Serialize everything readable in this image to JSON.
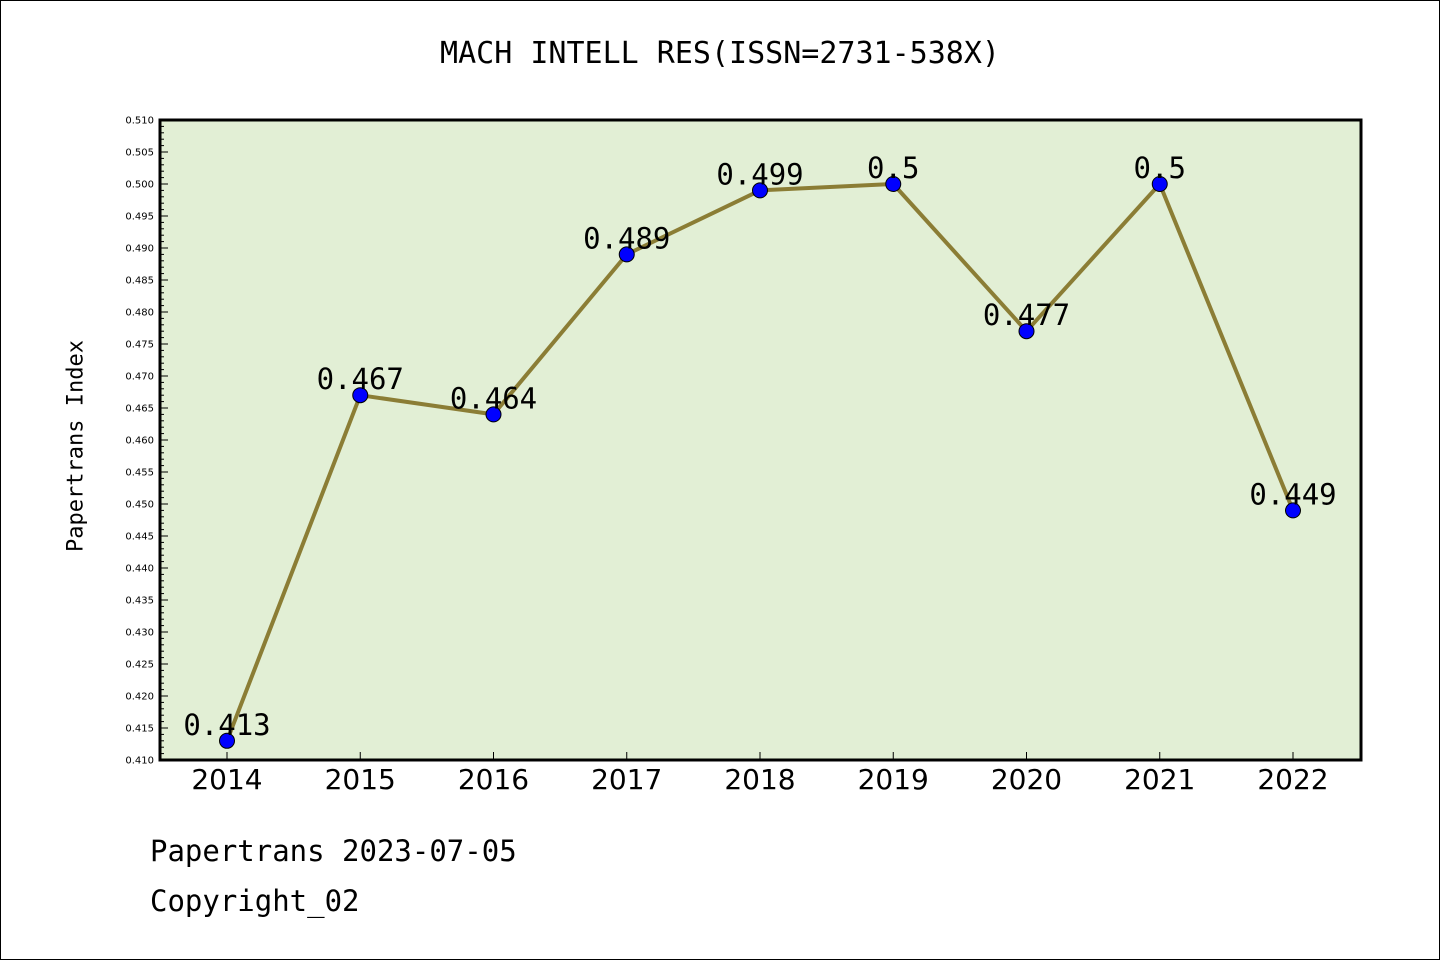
{
  "title": "MACH INTELL RES(ISSN=2731-538X)",
  "footer": {
    "date_line": "Papertrans 2023-07-05",
    "copyright_line": "Copyright_02"
  },
  "colors": {
    "plot_background": "#e2efd5",
    "line": "#8b7d35",
    "marker": "#0000ff",
    "axis": "#000000"
  },
  "chart_data": {
    "type": "line",
    "title": "MACH INTELL RES(ISSN=2731-538X)",
    "xlabel": "",
    "ylabel": "Papertrans Index",
    "categories": [
      "2014",
      "2015",
      "2016",
      "2017",
      "2018",
      "2019",
      "2020",
      "2021",
      "2022"
    ],
    "values": [
      0.413,
      0.467,
      0.464,
      0.489,
      0.499,
      0.5,
      0.477,
      0.5,
      0.449
    ],
    "data_labels": [
      "0.413",
      "0.467",
      "0.464",
      "0.489",
      "0.499",
      "0.5",
      "0.477",
      "0.5",
      "0.449"
    ],
    "ylim": [
      0.41,
      0.51
    ],
    "yticks": [
      "0.410",
      "0.415",
      "0.420",
      "0.425",
      "0.430",
      "0.435",
      "0.440",
      "0.445",
      "0.450",
      "0.455",
      "0.460",
      "0.465",
      "0.470",
      "0.475",
      "0.480",
      "0.485",
      "0.490",
      "0.495",
      "0.500",
      "0.505",
      "0.510"
    ],
    "grid": false,
    "legend": "none"
  }
}
